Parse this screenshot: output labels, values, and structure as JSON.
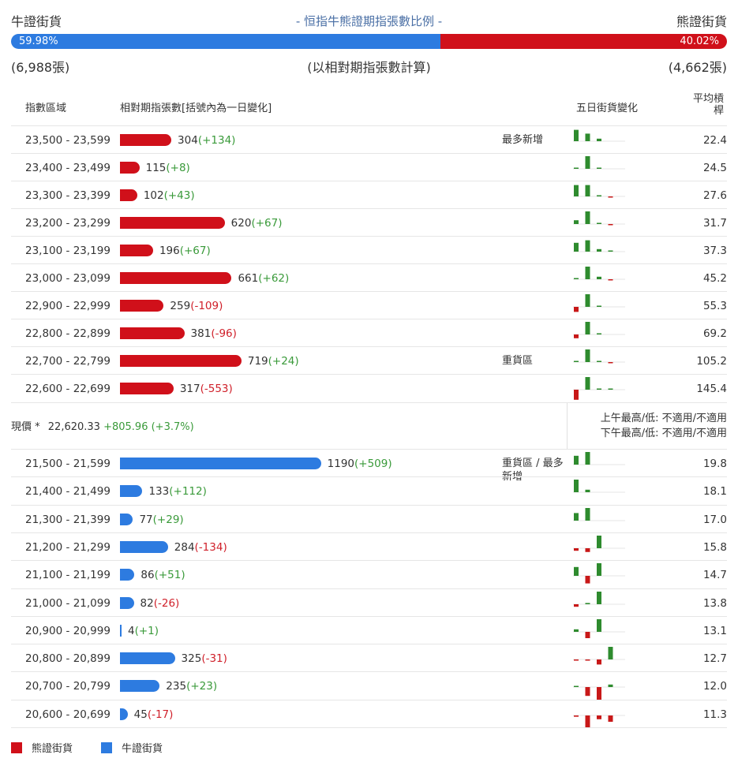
{
  "header": {
    "bull_label": "牛證街貨",
    "title": "- 恒指牛熊證期指張數比例 -",
    "bear_label": "熊證街貨",
    "bull_pct": "59.98%",
    "bear_pct": "40.02%",
    "bull_fraction": 0.5998,
    "bull_count": "(6,988張)",
    "note": "(以相對期指張數計算)",
    "bear_count": "(4,662張)"
  },
  "colors": {
    "bear": "#d0101a",
    "bull": "#2d7be0",
    "up": "#2e8b2e",
    "down": "#c81818"
  },
  "columns": {
    "range": "指數區域",
    "contracts": "相對期指張數[括號內為一日變化]",
    "five_day": "五日街貨變化",
    "avg_lev": "平均槓桿"
  },
  "bear_rows": [
    {
      "range": "23,500 - 23,599",
      "count": 304,
      "count_text": "304",
      "change": "(+134)",
      "note": "最多新增",
      "five_day": [
        9,
        6,
        2,
        null
      ],
      "avg": "22.4"
    },
    {
      "range": "23,400 - 23,499",
      "count": 115,
      "count_text": "115",
      "change": "(+8)",
      "note": "",
      "five_day": [
        0.2,
        10,
        0.2,
        null
      ],
      "avg": "24.5"
    },
    {
      "range": "23,300 - 23,399",
      "count": 102,
      "count_text": "102",
      "change": "(+43)",
      "note": "",
      "five_day": [
        9,
        9,
        0.2,
        -0.2
      ],
      "avg": "27.6"
    },
    {
      "range": "23,200 - 23,299",
      "count": 620,
      "count_text": "620",
      "change": "(+67)",
      "note": "",
      "five_day": [
        3,
        10,
        0.2,
        -0.2
      ],
      "avg": "31.7"
    },
    {
      "range": "23,100 - 23,199",
      "count": 196,
      "count_text": "196",
      "change": "(+67)",
      "note": "",
      "five_day": [
        7,
        9,
        2,
        0.2
      ],
      "avg": "37.3"
    },
    {
      "range": "23,000 - 23,099",
      "count": 661,
      "count_text": "661",
      "change": "(+62)",
      "note": "",
      "five_day": [
        0.2,
        10,
        2,
        -0.2
      ],
      "avg": "45.2"
    },
    {
      "range": "22,900 - 22,999",
      "count": 259,
      "count_text": "259",
      "change": "(-109)",
      "note": "",
      "five_day": [
        -4,
        10,
        0.2,
        null
      ],
      "avg": "55.3"
    },
    {
      "range": "22,800 - 22,899",
      "count": 381,
      "count_text": "381",
      "change": "(-96)",
      "note": "",
      "five_day": [
        -3,
        10,
        0.2,
        null
      ],
      "avg": "69.2"
    },
    {
      "range": "22,700 - 22,799",
      "count": 719,
      "count_text": "719",
      "change": "(+24)",
      "note": "重貨區",
      "five_day": [
        0.2,
        10,
        0.2,
        -0.2
      ],
      "avg": "105.2"
    },
    {
      "range": "22,600 - 22,699",
      "count": 317,
      "count_text": "317",
      "change": "(-553)",
      "note": "",
      "five_day": [
        -8,
        10,
        0.2,
        0.2
      ],
      "avg": "145.4"
    }
  ],
  "current": {
    "label": "現價 *",
    "price": "22,620.33",
    "change": "+805.96 (+3.7%)",
    "am": "上午最高/低: 不適用/不適用",
    "pm": "下午最高/低: 不適用/不適用"
  },
  "bull_rows": [
    {
      "range": "21,500 - 21,599",
      "count": 1190,
      "count_text": "1190",
      "change": "(+509)",
      "note": "重貨區 / 最多新增",
      "five_day": [
        7,
        10,
        null,
        null
      ],
      "avg": "19.8"
    },
    {
      "range": "21,400 - 21,499",
      "count": 133,
      "count_text": "133",
      "change": "(+112)",
      "note": "",
      "five_day": [
        10,
        2,
        null,
        null
      ],
      "avg": "18.1"
    },
    {
      "range": "21,300 - 21,399",
      "count": 77,
      "count_text": "77",
      "change": "(+29)",
      "note": "",
      "five_day": [
        6,
        10,
        null,
        null
      ],
      "avg": "17.0"
    },
    {
      "range": "21,200 - 21,299",
      "count": 284,
      "count_text": "284",
      "change": "(-134)",
      "note": "",
      "five_day": [
        -2,
        -3,
        10,
        null
      ],
      "avg": "15.8"
    },
    {
      "range": "21,100 - 21,199",
      "count": 86,
      "count_text": "86",
      "change": "(+51)",
      "note": "",
      "five_day": [
        7,
        -6,
        10,
        null
      ],
      "avg": "14.7"
    },
    {
      "range": "21,000 - 21,099",
      "count": 82,
      "count_text": "82",
      "change": "(-26)",
      "note": "",
      "five_day": [
        -2,
        1,
        10,
        null
      ],
      "avg": "13.8"
    },
    {
      "range": "20,900 - 20,999",
      "count": 4,
      "count_text": "4",
      "change": "(+1)",
      "note": "",
      "five_day": [
        2,
        -5,
        10,
        null
      ],
      "avg": "13.1"
    },
    {
      "range": "20,800 - 20,899",
      "count": 325,
      "count_text": "325",
      "change": "(-31)",
      "note": "",
      "five_day": [
        -0.3,
        -0.3,
        -4,
        10
      ],
      "avg": "12.7"
    },
    {
      "range": "20,700 - 20,799",
      "count": 235,
      "count_text": "235",
      "change": "(+23)",
      "note": "",
      "five_day": [
        0.2,
        -7,
        -10,
        2
      ],
      "avg": "12.0"
    },
    {
      "range": "20,600 - 20,699",
      "count": 45,
      "count_text": "45",
      "change": "(-17)",
      "note": "",
      "five_day": [
        -1,
        -10,
        -3,
        -5
      ],
      "avg": "11.3"
    }
  ],
  "legend": {
    "bear": "熊證街貨",
    "bull": "牛證街貨"
  }
}
